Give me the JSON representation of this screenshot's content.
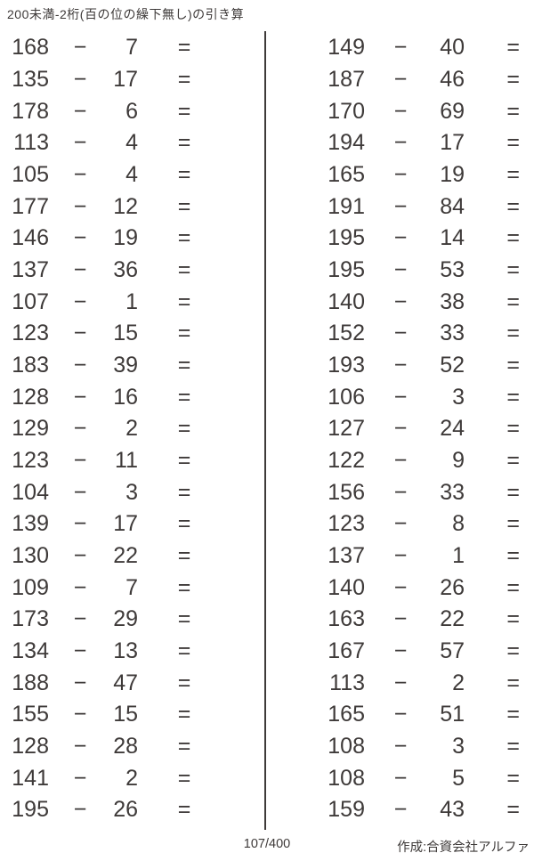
{
  "title": "200未満-2桁(百の位の繰下無し)の引き算",
  "symbols": {
    "minus": "−",
    "equals": "="
  },
  "footer": {
    "page_number": "107/400",
    "credit": "作成:合資会社アルファ"
  },
  "ink_color": "#3e3a39",
  "columns": {
    "left": [
      {
        "minuend": 168,
        "subtrahend": 7
      },
      {
        "minuend": 135,
        "subtrahend": 17
      },
      {
        "minuend": 178,
        "subtrahend": 6
      },
      {
        "minuend": 113,
        "subtrahend": 4
      },
      {
        "minuend": 105,
        "subtrahend": 4
      },
      {
        "minuend": 177,
        "subtrahend": 12
      },
      {
        "minuend": 146,
        "subtrahend": 19
      },
      {
        "minuend": 137,
        "subtrahend": 36
      },
      {
        "minuend": 107,
        "subtrahend": 1
      },
      {
        "minuend": 123,
        "subtrahend": 15
      },
      {
        "minuend": 183,
        "subtrahend": 39
      },
      {
        "minuend": 128,
        "subtrahend": 16
      },
      {
        "minuend": 129,
        "subtrahend": 2
      },
      {
        "minuend": 123,
        "subtrahend": 11
      },
      {
        "minuend": 104,
        "subtrahend": 3
      },
      {
        "minuend": 139,
        "subtrahend": 17
      },
      {
        "minuend": 130,
        "subtrahend": 22
      },
      {
        "minuend": 109,
        "subtrahend": 7
      },
      {
        "minuend": 173,
        "subtrahend": 29
      },
      {
        "minuend": 134,
        "subtrahend": 13
      },
      {
        "minuend": 188,
        "subtrahend": 47
      },
      {
        "minuend": 155,
        "subtrahend": 15
      },
      {
        "minuend": 128,
        "subtrahend": 28
      },
      {
        "minuend": 141,
        "subtrahend": 2
      },
      {
        "minuend": 195,
        "subtrahend": 26
      }
    ],
    "right": [
      {
        "minuend": 149,
        "subtrahend": 40
      },
      {
        "minuend": 187,
        "subtrahend": 46
      },
      {
        "minuend": 170,
        "subtrahend": 69
      },
      {
        "minuend": 194,
        "subtrahend": 17
      },
      {
        "minuend": 165,
        "subtrahend": 19
      },
      {
        "minuend": 191,
        "subtrahend": 84
      },
      {
        "minuend": 195,
        "subtrahend": 14
      },
      {
        "minuend": 195,
        "subtrahend": 53
      },
      {
        "minuend": 140,
        "subtrahend": 38
      },
      {
        "minuend": 152,
        "subtrahend": 33
      },
      {
        "minuend": 193,
        "subtrahend": 52
      },
      {
        "minuend": 106,
        "subtrahend": 3
      },
      {
        "minuend": 127,
        "subtrahend": 24
      },
      {
        "minuend": 122,
        "subtrahend": 9
      },
      {
        "minuend": 156,
        "subtrahend": 33
      },
      {
        "minuend": 123,
        "subtrahend": 8
      },
      {
        "minuend": 137,
        "subtrahend": 1
      },
      {
        "minuend": 140,
        "subtrahend": 26
      },
      {
        "minuend": 163,
        "subtrahend": 22
      },
      {
        "minuend": 167,
        "subtrahend": 57
      },
      {
        "minuend": 113,
        "subtrahend": 2
      },
      {
        "minuend": 165,
        "subtrahend": 51
      },
      {
        "minuend": 108,
        "subtrahend": 3
      },
      {
        "minuend": 108,
        "subtrahend": 5
      },
      {
        "minuend": 159,
        "subtrahend": 43
      }
    ]
  }
}
